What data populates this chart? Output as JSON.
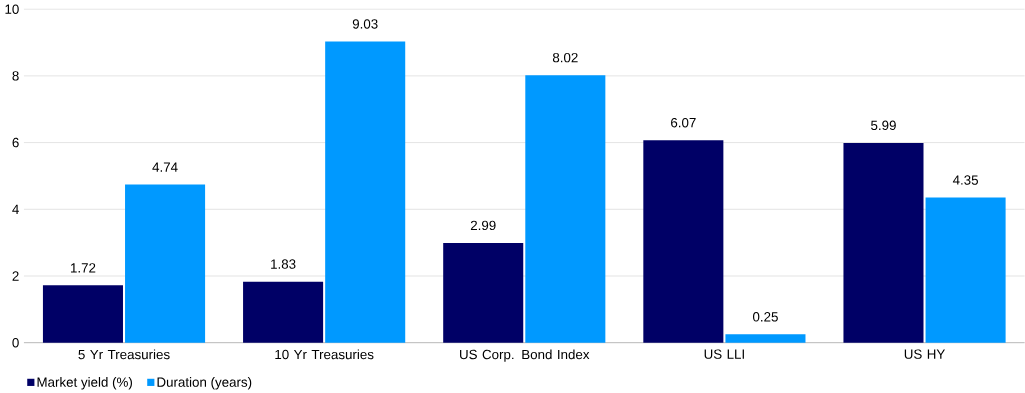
{
  "chart_data": {
    "type": "bar",
    "categories": [
      "5 Yr Treasuries",
      "10 Yr Treasuries",
      "US Corp. Bond Index",
      "US LLI",
      "US HY"
    ],
    "series": [
      {
        "name": "Market yield (%)",
        "color": "#000066",
        "values": [
          1.72,
          1.83,
          2.99,
          6.07,
          5.99
        ]
      },
      {
        "name": "Duration (years)",
        "color": "#0099ff",
        "values": [
          4.74,
          9.03,
          8.02,
          0.25,
          4.35
        ]
      }
    ],
    "ylim": [
      0,
      10
    ],
    "yticks": [
      0,
      2,
      4,
      6,
      8,
      10
    ],
    "grid": "y",
    "legend": "bottom left",
    "data_labels": true
  }
}
